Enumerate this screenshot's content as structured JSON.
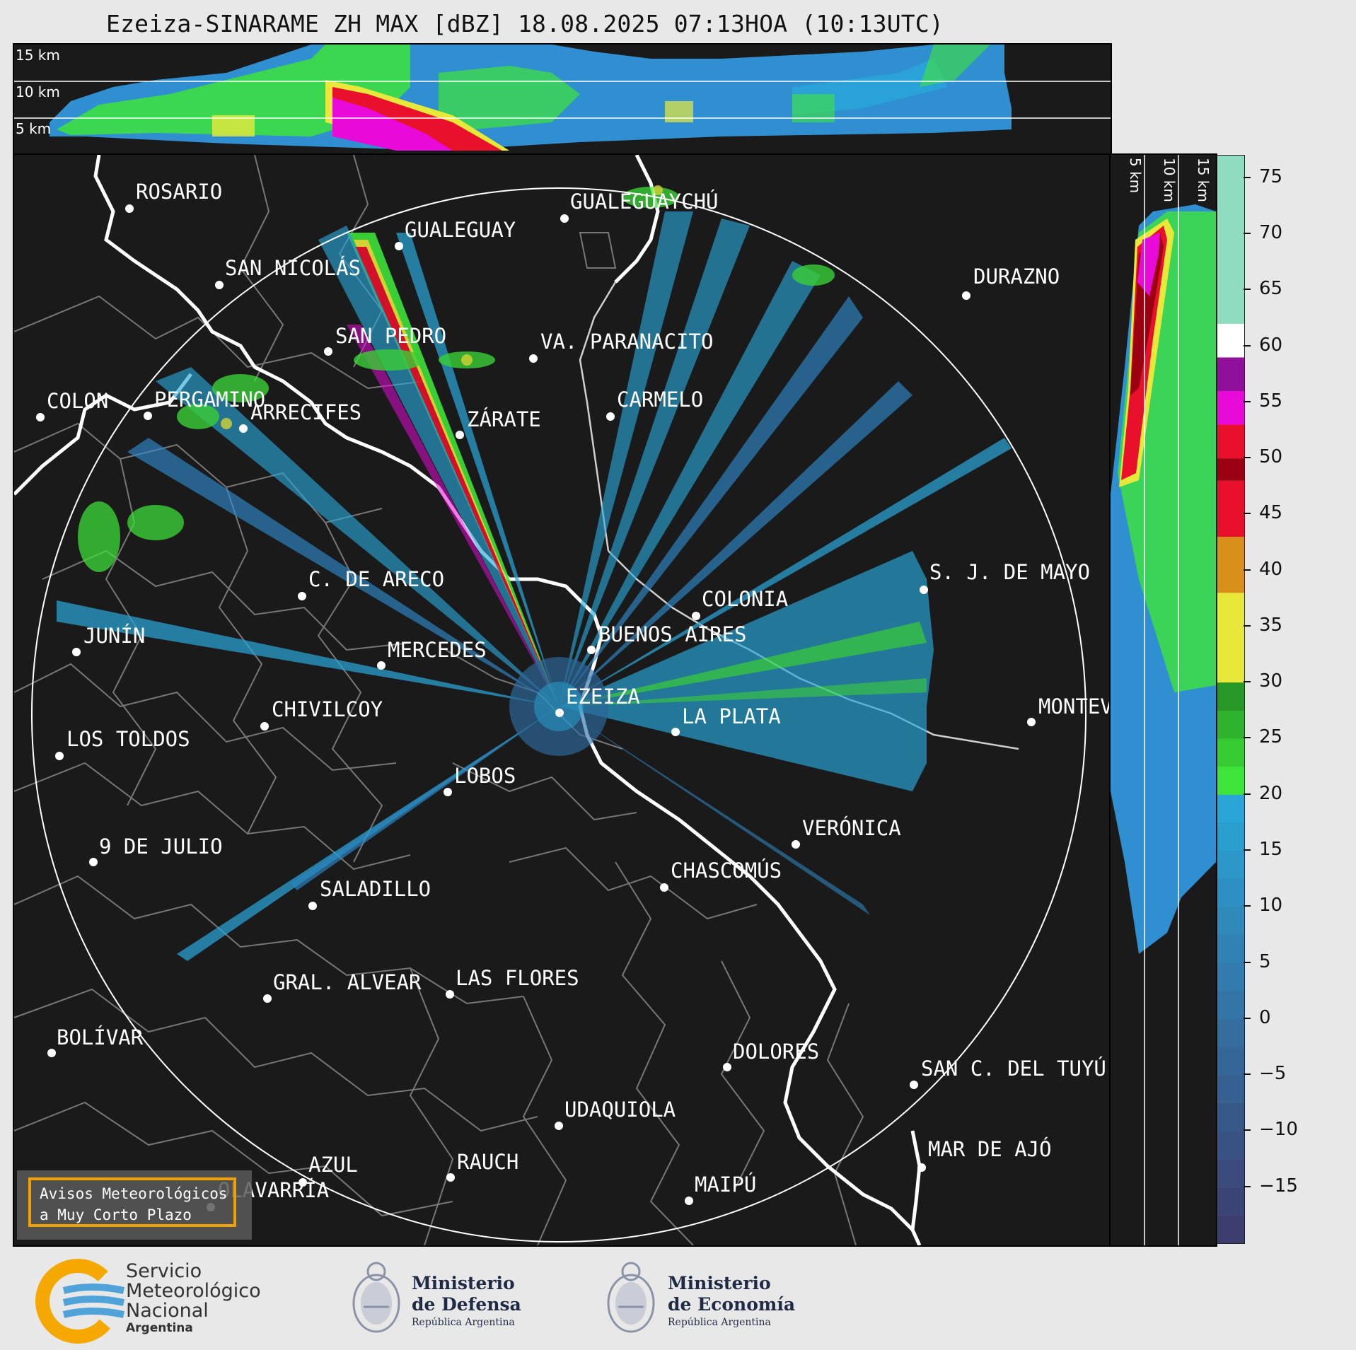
{
  "title": "Ezeiza-SINARAME ZH MAX [dBZ] 18.08.2025 07:13HOA (10:13UTC)",
  "top_panel": {
    "height_labels": [
      "15 km",
      "10 km",
      "5 km"
    ]
  },
  "side_panel": {
    "height_labels": [
      "5 km",
      "10 km",
      "15 km"
    ]
  },
  "cities": [
    {
      "name": "ROSARIO"
    },
    {
      "name": "GUALEGUAYCHÚ"
    },
    {
      "name": "GUALEGUAY"
    },
    {
      "name": "SAN NICOLÁS"
    },
    {
      "name": "DURAZNO"
    },
    {
      "name": "SAN PEDRO"
    },
    {
      "name": "VA. PARANACITO"
    },
    {
      "name": "COLON"
    },
    {
      "name": "PERGAMINO"
    },
    {
      "name": "CARMELO"
    },
    {
      "name": "ARRECIFES"
    },
    {
      "name": "ZÁRATE"
    },
    {
      "name": "S. J. DE MAYO"
    },
    {
      "name": "C. DE ARECO"
    },
    {
      "name": "COLONIA"
    },
    {
      "name": "JUNÍN"
    },
    {
      "name": "BUENOS AIRES"
    },
    {
      "name": "MERCEDES"
    },
    {
      "name": "MONTEVIDEO"
    },
    {
      "name": "EZEIZA"
    },
    {
      "name": "CHIVILCOY"
    },
    {
      "name": "LA PLATA"
    },
    {
      "name": "LOS TOLDOS"
    },
    {
      "name": "LOBOS"
    },
    {
      "name": "VERÓNICA"
    },
    {
      "name": "9 DE JULIO"
    },
    {
      "name": "CHASCOMÚS"
    },
    {
      "name": "SALADILLO"
    },
    {
      "name": "GRAL. ALVEAR"
    },
    {
      "name": "LAS FLORES"
    },
    {
      "name": "BOLÍVAR"
    },
    {
      "name": "DOLORES"
    },
    {
      "name": "SAN C. DEL TUYÚ"
    },
    {
      "name": "UDAQUIOLA"
    },
    {
      "name": "MAR DE AJÓ"
    },
    {
      "name": "RAUCH"
    },
    {
      "name": "AZUL"
    },
    {
      "name": "OLAVARRÍA"
    },
    {
      "name": "MAIPÚ"
    }
  ],
  "colorbar": {
    "unit": "dBZ",
    "ticks": [
      "75",
      "70",
      "65",
      "60",
      "55",
      "50",
      "45",
      "40",
      "35",
      "30",
      "25",
      "20",
      "15",
      "10",
      "5",
      "0",
      "−5",
      "−10",
      "−15"
    ],
    "tick_values": [
      75,
      70,
      65,
      60,
      55,
      50,
      45,
      40,
      35,
      30,
      25,
      20,
      15,
      10,
      5,
      0,
      -5,
      -10,
      -15
    ],
    "range": [
      -20,
      77
    ],
    "colors": {
      "neg": "#3b3e6e",
      "low": "#2f6fa5",
      "light_blue": "#2aa6d8",
      "green": "#3ee43a",
      "dark_green": "#1f7f1f",
      "yellow": "#e8e83a",
      "orange": "#d8901a",
      "red": "#e8102a",
      "dark_red": "#9a0010",
      "magenta": "#e80ad8",
      "purple": "#90109a",
      "white": "#ffffff",
      "mint": "#8fdcc0"
    }
  },
  "alert_box": {
    "line1": "Avisos Meteorológicos",
    "line2": "a Muy Corto Plazo"
  },
  "footer": {
    "smn_line1": "Servicio",
    "smn_line2": "Meteorológico",
    "smn_line3": "Nacional",
    "smn_line4": "Argentina",
    "defensa_line1": "Ministerio",
    "defensa_line2": "de Defensa",
    "defensa_line3": "República Argentina",
    "economia_line1": "Ministerio",
    "economia_line2": "de Economía",
    "economia_line3": "República Argentina"
  }
}
